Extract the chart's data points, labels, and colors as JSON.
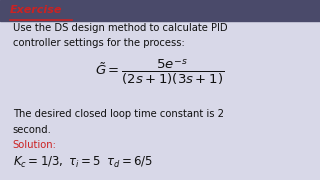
{
  "bg_color": "#d8d8e8",
  "header_bg": "#4a4a6a",
  "header_text": "Exercise",
  "header_text_color": "#cc2222",
  "header_underline_color": "#cc2222",
  "body_text_color": "#111111",
  "solution_color": "#cc2222",
  "line1": "Use the DS design method to calculate PID",
  "line2": "controller settings for the process:",
  "equation": "$\\tilde{G} = \\dfrac{5e^{-s}}{(2s+1)(3s+1)}$",
  "line3": "The desired closed loop time constant is 2",
  "line4": "second.",
  "solution_label": "Solution:",
  "solution_line": "$K_c = 1/3, \\; \\tau_i = 5 \\;\\; \\tau_d = 6/5$",
  "fig_width": 3.2,
  "fig_height": 1.8,
  "dpi": 100
}
